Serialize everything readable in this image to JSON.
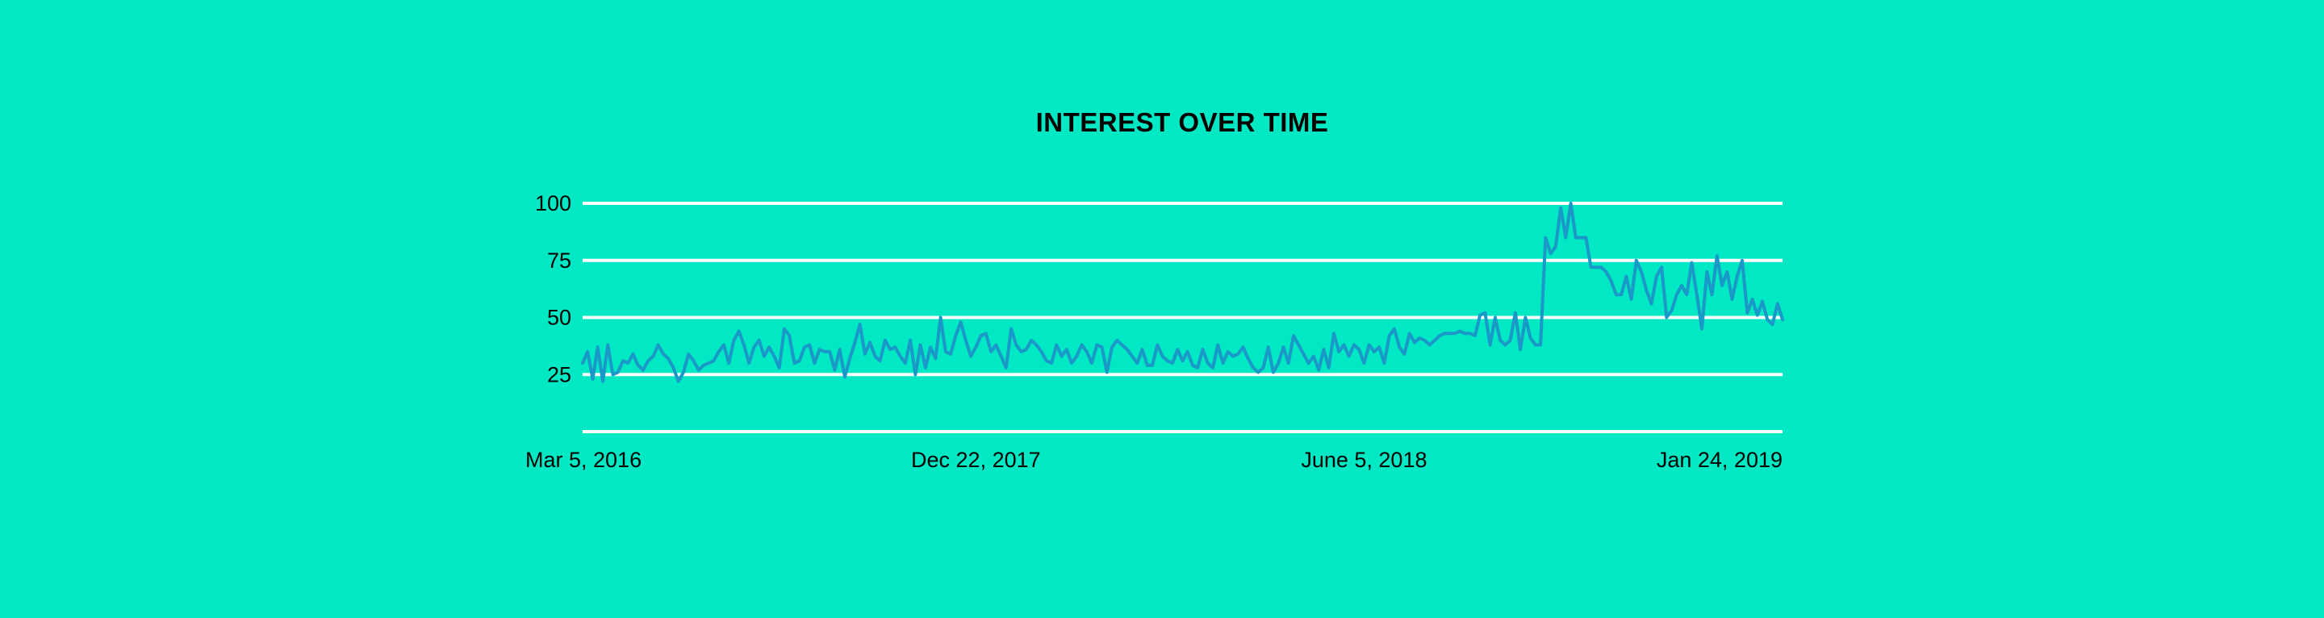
{
  "colors": {
    "background": "#00E8C4",
    "grid": "#FFFFFF",
    "line": "#1A98C8",
    "text": "#000000"
  },
  "chart_data": {
    "type": "line",
    "title": "INTEREST OVER TIME",
    "xlabel": "",
    "ylabel": "",
    "grid": true,
    "legend": "none",
    "ylim": [
      0,
      100
    ],
    "y_ticks": [
      100,
      75,
      50,
      25
    ],
    "x_ticks": [
      {
        "label": "Mar 5, 2016",
        "index": 0
      },
      {
        "label": "Dec 22, 2017",
        "index": 78
      },
      {
        "label": "June 5, 2018",
        "index": 155
      },
      {
        "label": "Jan 24, 2019",
        "index": 239
      }
    ],
    "series": [
      {
        "values": [
          30,
          35,
          23,
          37,
          22,
          38,
          25,
          26,
          31,
          30,
          34,
          29,
          27,
          31,
          33,
          38,
          34,
          32,
          28,
          22,
          26,
          34,
          31,
          27,
          29,
          30,
          31,
          35,
          38,
          30,
          40,
          44,
          38,
          30,
          37,
          40,
          33,
          37,
          33,
          28,
          45,
          42,
          30,
          31,
          37,
          38,
          30,
          36,
          35,
          35,
          27,
          36,
          24,
          32,
          39,
          47,
          34,
          39,
          33,
          31,
          40,
          36,
          37,
          33,
          30,
          40,
          25,
          38,
          28,
          37,
          32,
          50,
          35,
          34,
          42,
          48,
          40,
          33,
          37,
          42,
          43,
          35,
          38,
          33,
          28,
          45,
          38,
          35,
          36,
          40,
          38,
          35,
          31,
          30,
          38,
          33,
          36,
          30,
          33,
          38,
          35,
          30,
          38,
          37,
          26,
          37,
          40,
          38,
          36,
          33,
          30,
          36,
          29,
          29,
          38,
          33,
          31,
          30,
          36,
          31,
          35,
          29,
          28,
          36,
          30,
          28,
          38,
          30,
          35,
          33,
          34,
          37,
          32,
          28,
          26,
          28,
          37,
          26,
          30,
          37,
          30,
          42,
          38,
          34,
          30,
          33,
          27,
          36,
          28,
          43,
          35,
          38,
          33,
          38,
          36,
          30,
          38,
          35,
          37,
          30,
          42,
          45,
          37,
          34,
          43,
          39,
          41,
          40,
          38,
          40,
          42,
          43,
          43,
          43,
          44,
          43,
          43,
          42,
          51,
          52,
          38,
          50,
          40,
          38,
          40,
          52,
          36,
          50,
          41,
          38,
          38,
          85,
          78,
          81,
          98,
          85,
          100,
          85,
          85,
          85,
          72,
          72,
          72,
          70,
          66,
          60,
          60,
          68,
          58,
          75,
          70,
          62,
          56,
          68,
          72,
          50,
          53,
          60,
          64,
          60,
          74,
          60,
          45,
          70,
          60,
          77,
          64,
          70,
          58,
          68,
          75,
          52,
          58,
          51,
          57,
          49,
          47,
          56,
          49
        ]
      }
    ]
  }
}
